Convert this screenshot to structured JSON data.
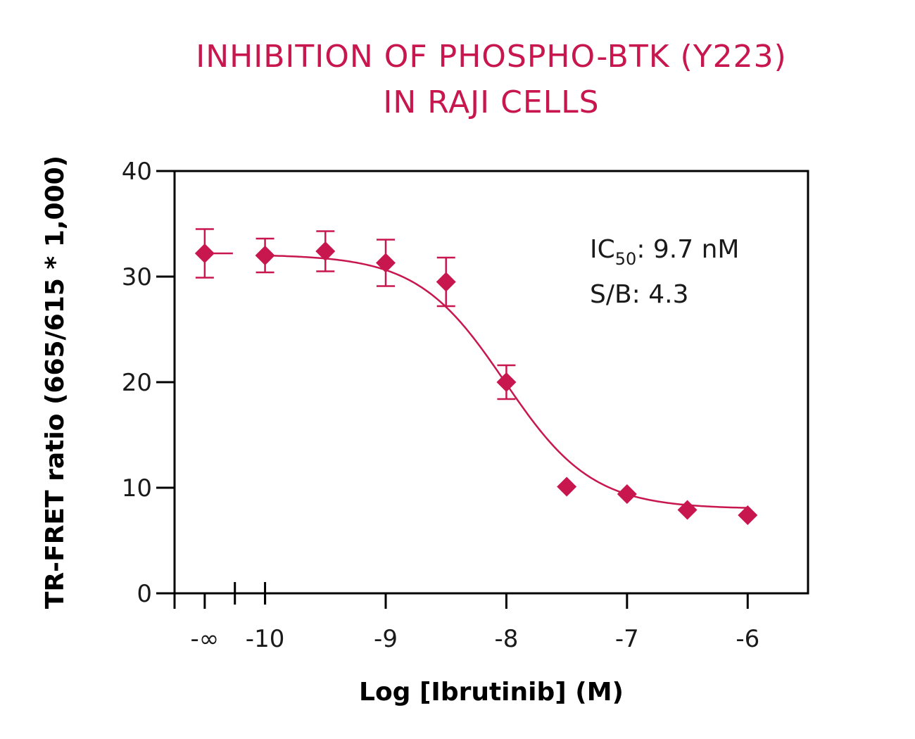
{
  "chart_data": {
    "type": "scatter",
    "title": "INHIBITION OF PHOSPHO-BTK (Y223)",
    "subtitle": "IN RAJI CELLS",
    "xlabel": "Log [Ibrutinib] (M)",
    "ylabel": "TR-FRET ratio (665/615 * 1,000)",
    "ylim": [
      0,
      40
    ],
    "xlim": [
      -10.75,
      -5.5
    ],
    "y_ticks": [
      0,
      10,
      20,
      30,
      40
    ],
    "x_ticks": [
      {
        "value": -10.5,
        "label": "-∞"
      },
      {
        "value": -10,
        "label": "-10"
      },
      {
        "value": -9,
        "label": "-9"
      },
      {
        "value": -8,
        "label": "-8"
      },
      {
        "value": -7,
        "label": "-7"
      },
      {
        "value": -6,
        "label": "-6"
      }
    ],
    "axis_break": [
      -10.25,
      -10
    ],
    "grid": false,
    "color": "#c8174e",
    "points": [
      {
        "x": -10.5,
        "y": 32.2,
        "err": 2.3
      },
      {
        "x": -10.0,
        "y": 32.0,
        "err": 1.6
      },
      {
        "x": -9.5,
        "y": 32.4,
        "err": 1.9
      },
      {
        "x": -9.0,
        "y": 31.3,
        "err": 2.2
      },
      {
        "x": -8.5,
        "y": 29.5,
        "err": 2.3
      },
      {
        "x": -8.0,
        "y": 20.0,
        "err": 1.6
      },
      {
        "x": -7.5,
        "y": 10.1,
        "err": 0
      },
      {
        "x": -7.0,
        "y": 9.4,
        "err": 0
      },
      {
        "x": -6.5,
        "y": 7.9,
        "err": 0
      },
      {
        "x": -6.0,
        "y": 7.4,
        "err": 0
      }
    ],
    "fit": {
      "model": "4PL",
      "top": 32.1,
      "bottom": 8.0,
      "logIC50": -8.013,
      "hill": 1.2,
      "x_range": [
        -10.0,
        -6.0
      ]
    },
    "annotations": {
      "ic50_prefix": "IC",
      "ic50_sub": "50",
      "ic50_value": ": 9.7 nM",
      "sb": "S/B: 4.3"
    }
  }
}
